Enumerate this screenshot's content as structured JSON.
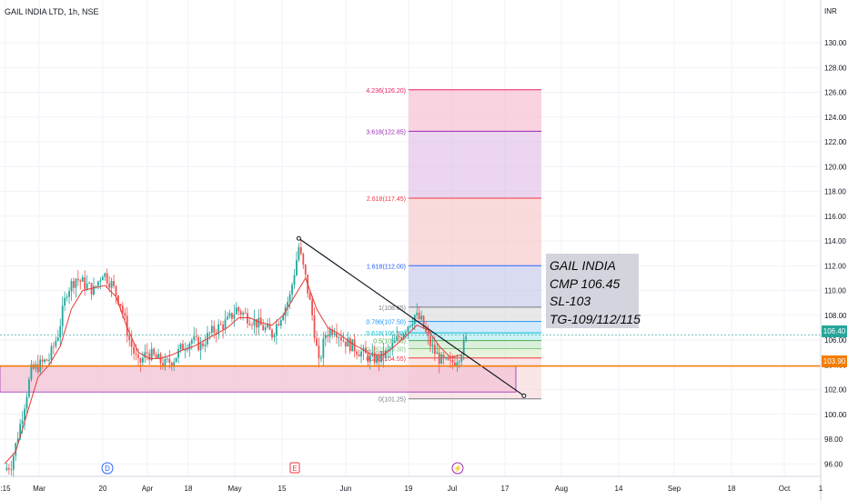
{
  "chart_data": {
    "type": "candlestick",
    "symbol": "GAIL INDIA LTD, 1h, NSE",
    "currency": "INR",
    "x_ticks": [
      ":15",
      "Mar",
      "20",
      "Apr",
      "18",
      "May",
      "15",
      "Jun",
      "19",
      "Jul",
      "17",
      "Aug",
      "14",
      "Sep",
      "18",
      "Oct",
      "1"
    ],
    "y_ticks": [
      "96.00",
      "98.00",
      "100.00",
      "102.00",
      "104.00",
      "106.00",
      "108.00",
      "110.00",
      "112.00",
      "114.00",
      "116.00",
      "118.00",
      "120.00",
      "122.00",
      "124.00",
      "126.00",
      "128.00",
      "130.00"
    ],
    "ylim": [
      95,
      131.5
    ],
    "price_path": [
      [
        0,
        95.5
      ],
      [
        0.3,
        96
      ],
      [
        0.5,
        97.5
      ],
      [
        0.8,
        100
      ],
      [
        1.2,
        103.5
      ],
      [
        1.6,
        104
      ],
      [
        2.0,
        104.5
      ],
      [
        2.4,
        106.5
      ],
      [
        2.8,
        110
      ],
      [
        3.2,
        111
      ],
      [
        3.6,
        110.5
      ],
      [
        4.0,
        110
      ],
      [
        4.4,
        111.5
      ],
      [
        4.8,
        110.5
      ],
      [
        5.2,
        109
      ],
      [
        5.6,
        106
      ],
      [
        6.0,
        104
      ],
      [
        6.4,
        105
      ],
      [
        6.8,
        104.5
      ],
      [
        7.2,
        104
      ],
      [
        7.6,
        104.5
      ],
      [
        8.0,
        105.5
      ],
      [
        8.4,
        106
      ],
      [
        8.8,
        105.5
      ],
      [
        9.2,
        106.5
      ],
      [
        9.6,
        107
      ],
      [
        10.0,
        107.5
      ],
      [
        10.4,
        108.5
      ],
      [
        10.8,
        108
      ],
      [
        11.2,
        107.5
      ],
      [
        11.6,
        107
      ],
      [
        12.0,
        106.5
      ],
      [
        12.4,
        108
      ],
      [
        12.8,
        109.5
      ],
      [
        13.2,
        113.5
      ],
      [
        13.5,
        111
      ],
      [
        13.8,
        108
      ],
      [
        14.1,
        104
      ],
      [
        14.4,
        106.5
      ],
      [
        14.8,
        107
      ],
      [
        15.2,
        106
      ],
      [
        15.6,
        105.5
      ],
      [
        16.0,
        105
      ],
      [
        16.4,
        104.5
      ],
      [
        16.8,
        104.5
      ],
      [
        17.2,
        105
      ],
      [
        17.6,
        106
      ],
      [
        18.0,
        107
      ],
      [
        18.4,
        108
      ],
      [
        18.7,
        107.5
      ],
      [
        19.0,
        106
      ],
      [
        19.3,
        105
      ],
      [
        19.6,
        104.3
      ],
      [
        20.0,
        104
      ],
      [
        20.4,
        104.8
      ],
      [
        20.8,
        106.4
      ]
    ],
    "moving_average_path": [
      [
        0,
        96
      ],
      [
        0.5,
        97
      ],
      [
        1.0,
        100
      ],
      [
        1.5,
        103
      ],
      [
        2.0,
        104
      ],
      [
        2.5,
        105.5
      ],
      [
        3.0,
        108.5
      ],
      [
        3.5,
        110
      ],
      [
        4.0,
        110.2
      ],
      [
        4.5,
        110.4
      ],
      [
        5.0,
        109.5
      ],
      [
        5.5,
        107
      ],
      [
        6.0,
        105
      ],
      [
        6.5,
        104.5
      ],
      [
        7.0,
        104.5
      ],
      [
        7.5,
        104.8
      ],
      [
        8.0,
        105.2
      ],
      [
        8.5,
        105.5
      ],
      [
        9.0,
        106
      ],
      [
        9.5,
        106.5
      ],
      [
        10.0,
        107
      ],
      [
        10.5,
        107.8
      ],
      [
        11.0,
        107.8
      ],
      [
        11.5,
        107.4
      ],
      [
        12.0,
        107.2
      ],
      [
        12.5,
        108
      ],
      [
        13.0,
        109.5
      ],
      [
        13.5,
        111
      ],
      [
        14.0,
        108.5
      ],
      [
        14.5,
        107
      ],
      [
        15.0,
        106.5
      ],
      [
        15.5,
        105.8
      ],
      [
        16.0,
        105.3
      ],
      [
        16.5,
        104.8
      ],
      [
        17.0,
        104.8
      ],
      [
        17.5,
        105.5
      ],
      [
        18.0,
        106.3
      ],
      [
        18.5,
        107.2
      ],
      [
        19.0,
        106.8
      ],
      [
        19.5,
        105.5
      ],
      [
        20.0,
        104.6
      ],
      [
        20.5,
        104.8
      ]
    ],
    "fib_levels": [
      {
        "label": "4.236(126.20)",
        "value": 126.2,
        "color": "#e91e63"
      },
      {
        "label": "3.618(122.85)",
        "value": 122.85,
        "color": "#9c27b0"
      },
      {
        "label": "2.618(117.45)",
        "value": 117.45,
        "color": "#f23645"
      },
      {
        "label": "1.618(112.00)",
        "value": 112.0,
        "color": "#2962ff"
      },
      {
        "label": "1(108.65)",
        "value": 108.65,
        "color": "#787b86"
      },
      {
        "label": "0.786(107.50)",
        "value": 107.5,
        "color": "#2196f3"
      },
      {
        "label": "0.618(106.58)",
        "value": 106.58,
        "color": "#00bcd4"
      },
      {
        "label": "0.5(105.95)",
        "value": 105.95,
        "color": "#4caf50"
      },
      {
        "label": "0.382(105.30)",
        "value": 105.3,
        "color": "#81c784"
      },
      {
        "label": "0.236(104.55)",
        "value": 104.55,
        "color": "#f23645"
      },
      {
        "label": "0(101.25)",
        "value": 101.25,
        "color": "#787b86"
      }
    ],
    "fib_bands": [
      {
        "from": 122.85,
        "to": 126.2,
        "color": "#f8bbd0"
      },
      {
        "from": 117.45,
        "to": 122.85,
        "color": "#e1bee7"
      },
      {
        "from": 112.0,
        "to": 117.45,
        "color": "#f8c8c8"
      },
      {
        "from": 108.65,
        "to": 112.0,
        "color": "#c5cae9"
      },
      {
        "from": 107.5,
        "to": 108.65,
        "color": "#dcdcdc"
      },
      {
        "from": 106.58,
        "to": 107.5,
        "color": "#bbdefb"
      },
      {
        "from": 105.95,
        "to": 106.58,
        "color": "#b2ebf2"
      },
      {
        "from": 105.3,
        "to": 105.95,
        "color": "#c8e6c9"
      },
      {
        "from": 104.55,
        "to": 105.3,
        "color": "#dcedc8"
      },
      {
        "from": 101.25,
        "to": 104.55,
        "color": "#f8d7da"
      }
    ],
    "support_zone": {
      "from": 101.8,
      "to": 103.9
    },
    "horizontal_level": 103.9,
    "current_price": 106.4,
    "trendline": {
      "from": [
        13.2,
        114.2
      ],
      "to": [
        23.3,
        101.5
      ]
    },
    "event_markers": [
      "D",
      "E",
      "⚡"
    ],
    "price_tags": {
      "current": "106.40",
      "level": "103.90"
    },
    "colors": {
      "candle_up": "#26a69a",
      "candle_down": "#ef5350",
      "moving_average": "#e53935",
      "level": "#f57c00",
      "zone": "#9c27b0"
    }
  },
  "annotation": {
    "line1": "GAIL INDIA",
    "line2": "CMP 106.45",
    "line3": "SL-103",
    "line4": "TG-109/112/115"
  }
}
